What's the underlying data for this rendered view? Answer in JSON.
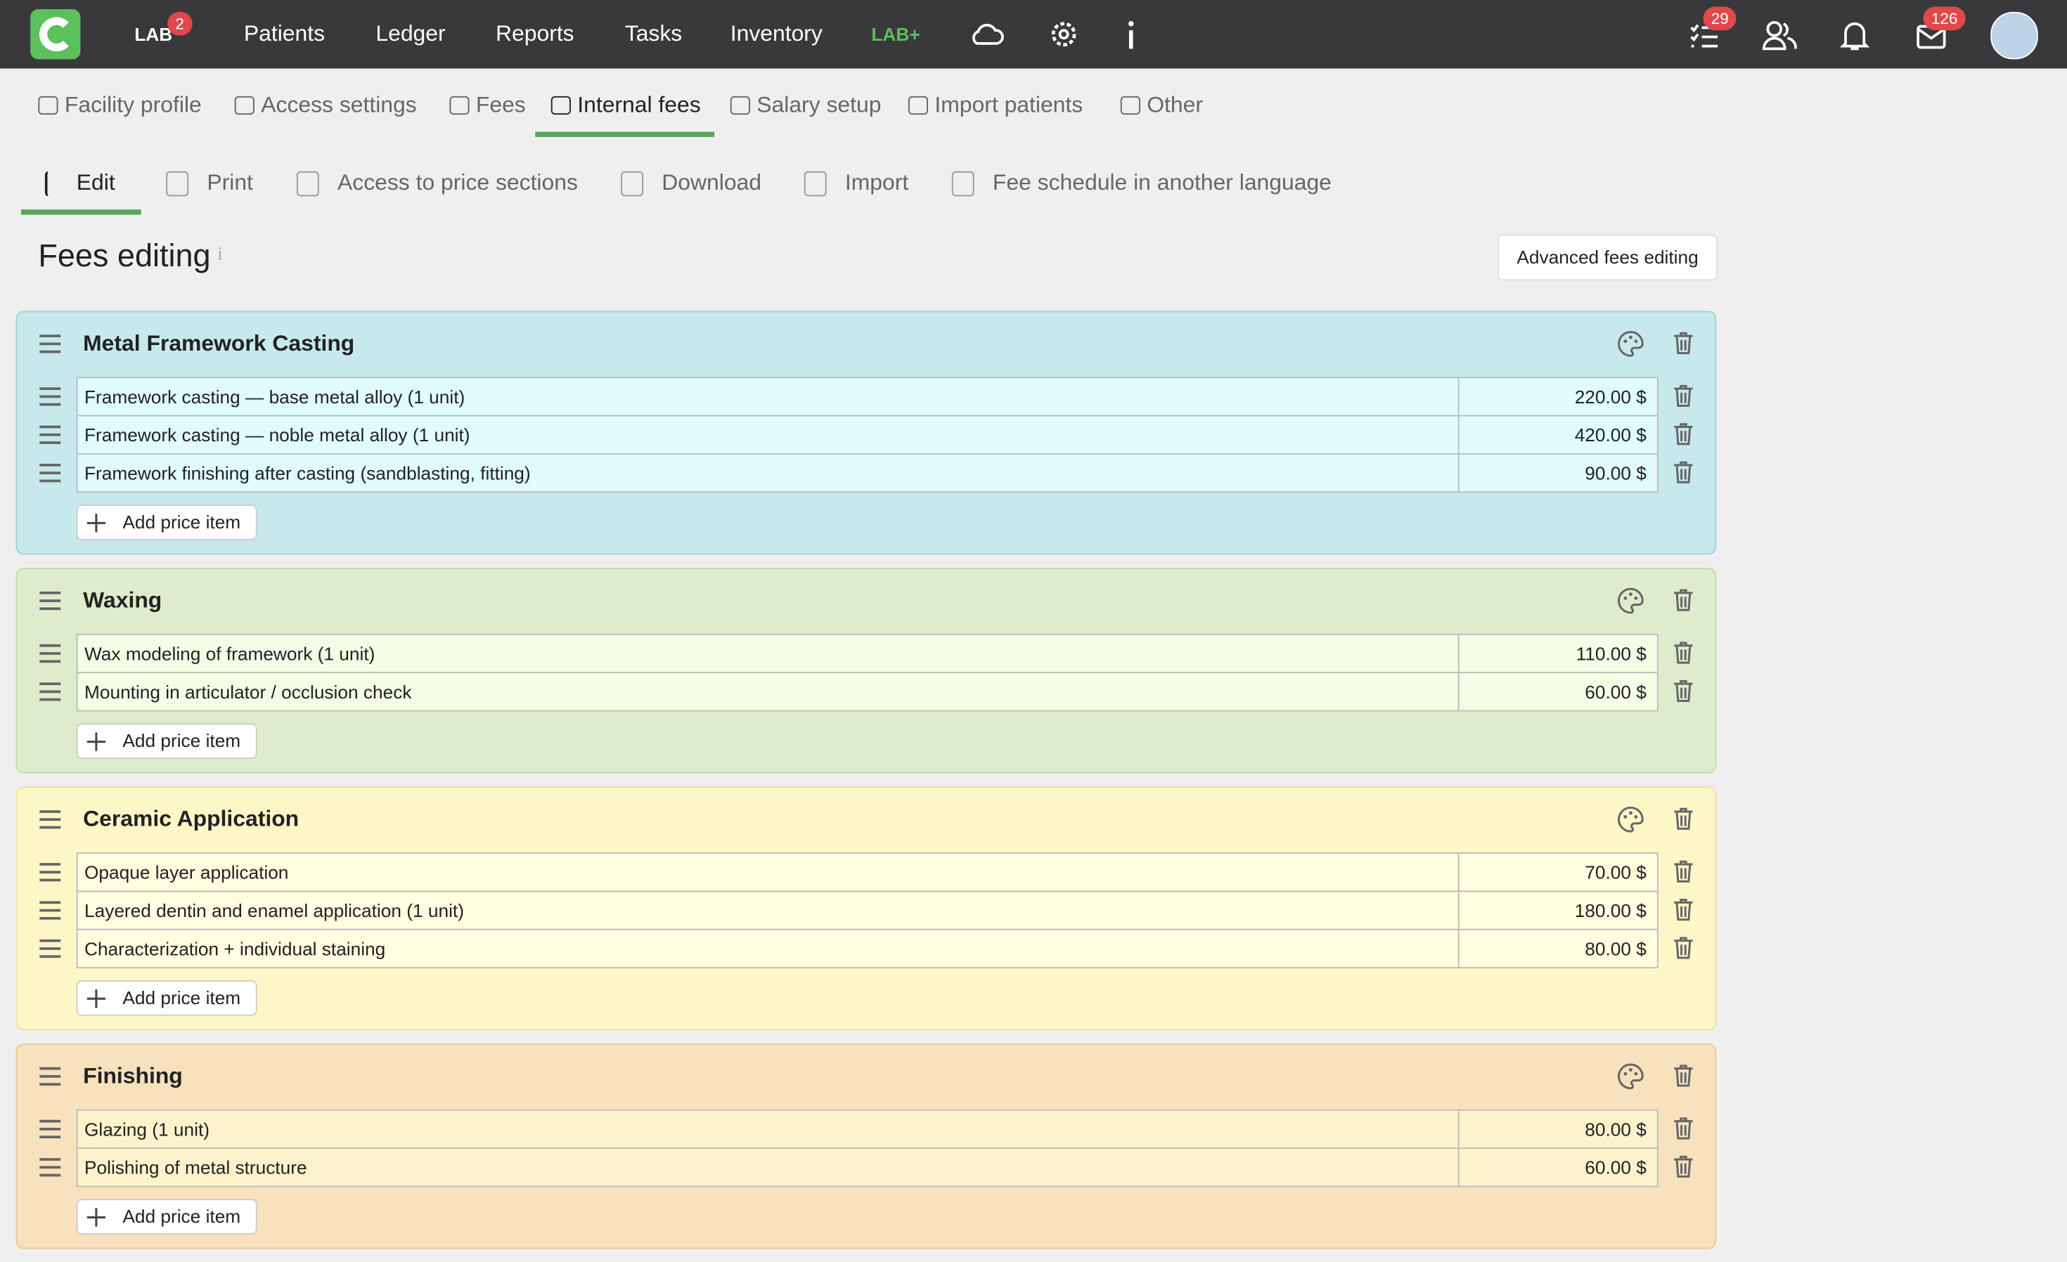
{
  "topbar": {
    "lab": "LAB",
    "lab_badge": 2,
    "nav": [
      "Patients",
      "Ledger",
      "Reports",
      "Tasks",
      "Inventory"
    ],
    "lab_plus": "LAB+",
    "tasks_badge": 29,
    "mail_badge": 126
  },
  "subnav": [
    "Facility profile",
    "Access settings",
    "Fees",
    "Internal fees",
    "Salary setup",
    "Import patients",
    "Other"
  ],
  "toolbar": [
    "Edit",
    "Print",
    "Access to price sections",
    "Download",
    "Import",
    "Fee schedule in another language"
  ],
  "page": {
    "title": "Fees editing",
    "info": "i",
    "advanced_button": "Advanced fees editing",
    "add_label": "Add price item"
  },
  "sections": [
    {
      "title": "Metal Framework Casting",
      "items": [
        {
          "name": "Framework casting — base metal alloy (1 unit)",
          "price": "220.00 $"
        },
        {
          "name": "Framework casting — noble metal alloy (1 unit)",
          "price": "420.00 $"
        },
        {
          "name": "Framework finishing after casting (sandblasting, fitting)",
          "price": "90.00 $"
        }
      ]
    },
    {
      "title": "Waxing",
      "items": [
        {
          "name": "Wax modeling of framework (1 unit)",
          "price": "110.00 $"
        },
        {
          "name": "Mounting in articulator / occlusion check",
          "price": "60.00 $"
        }
      ]
    },
    {
      "title": "Ceramic Application",
      "items": [
        {
          "name": "Opaque layer application",
          "price": "70.00 $"
        },
        {
          "name": "Layered dentin and enamel application (1 unit)",
          "price": "180.00 $"
        },
        {
          "name": "Characterization + individual staining",
          "price": "80.00 $"
        }
      ]
    },
    {
      "title": "Finishing",
      "items": [
        {
          "name": "Glazing (1 unit)",
          "price": "80.00 $"
        },
        {
          "name": "Polishing of metal structure",
          "price": "60.00 $"
        }
      ]
    }
  ]
}
